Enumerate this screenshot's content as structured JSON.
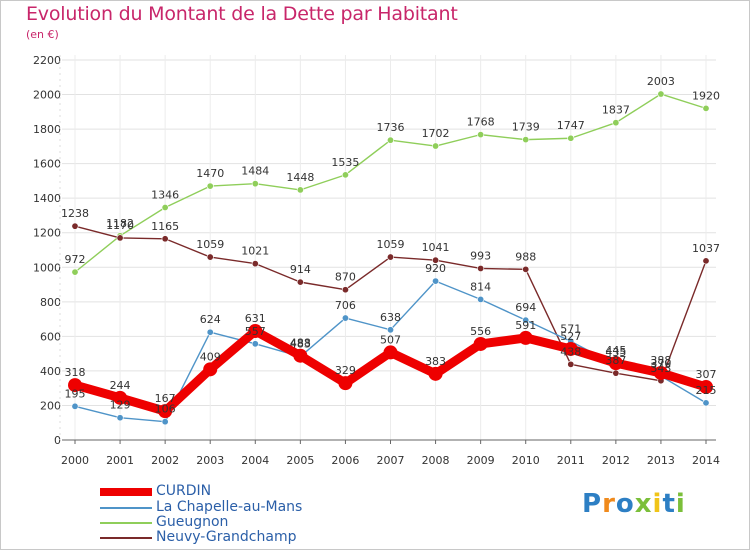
{
  "header": {
    "title": "Evolution du Montant de la Dette par Habitant",
    "subtitle": "(en €)"
  },
  "logo": {
    "text": "Proxiti"
  },
  "chart_data": {
    "type": "line",
    "title": "Evolution du Montant de la Dette par Habitant",
    "subtitle": "(en €)",
    "xlabel": "",
    "ylabel": "",
    "x": [
      2000,
      2001,
      2002,
      2003,
      2004,
      2005,
      2006,
      2007,
      2008,
      2009,
      2010,
      2011,
      2012,
      2013,
      2014
    ],
    "ylim": [
      0,
      2200
    ],
    "yticks": [
      0,
      200,
      400,
      600,
      800,
      1000,
      1200,
      1400,
      1600,
      1800,
      2000,
      2200
    ],
    "grid": true,
    "legend_position": "bottom-left",
    "series": [
      {
        "name": "CURDIN",
        "color": "#ee0000",
        "values": [
          318,
          244,
          167,
          409,
          631,
          488,
          329,
          507,
          383,
          556,
          591,
          527,
          445,
          388,
          307
        ],
        "labels": [
          "318",
          "244",
          "167",
          "409",
          "631",
          "488",
          "329",
          "507",
          "383",
          "556",
          "591",
          "527",
          "445",
          "388",
          "307"
        ]
      },
      {
        "name": "La Chapelle-au-Mans",
        "color": "#4f94c8",
        "values": [
          195,
          129,
          106,
          624,
          557,
          483,
          706,
          638,
          920,
          814,
          694,
          571,
          435,
          370,
          215
        ],
        "labels": [
          "195",
          "129",
          "106",
          "624",
          "557",
          "483",
          "706",
          "638",
          "920",
          "814",
          "694",
          "571",
          "435",
          "370",
          "215"
        ]
      },
      {
        "name": "Gueugnon",
        "color": "#8fce5a",
        "values": [
          972,
          1182,
          1346,
          1470,
          1484,
          1448,
          1535,
          1736,
          1702,
          1768,
          1739,
          1747,
          1837,
          2003,
          1920
        ],
        "labels": [
          "972",
          "1182",
          "1346",
          "1470",
          "1484",
          "1448",
          "1535",
          "1736",
          "1702",
          "1768",
          "1739",
          "1747",
          "1837",
          "2003",
          "1920"
        ]
      },
      {
        "name": "Neuvy-Grandchamp",
        "color": "#7a2a2a",
        "values": [
          1238,
          1170,
          1165,
          1059,
          1021,
          914,
          870,
          1059,
          1041,
          993,
          988,
          438,
          387,
          343,
          1037
        ],
        "labels": [
          "1238",
          "1170",
          "1165",
          "1059",
          "1021",
          "914",
          "870",
          "1059",
          "1041",
          "993",
          "988",
          "438",
          "387",
          "343",
          "1037"
        ]
      }
    ]
  }
}
